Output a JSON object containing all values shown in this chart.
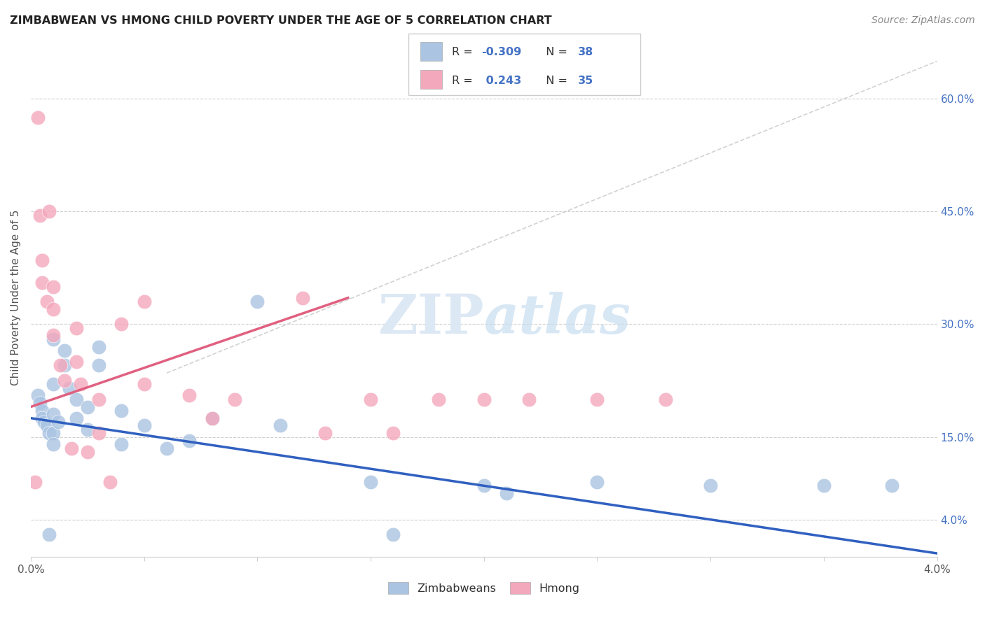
{
  "title": "ZIMBABWEAN VS HMONG CHILD POVERTY UNDER THE AGE OF 5 CORRELATION CHART",
  "source": "Source: ZipAtlas.com",
  "ylabel": "Child Poverty Under the Age of 5",
  "xlim": [
    0.0,
    0.04
  ],
  "ylim": [
    -0.01,
    0.68
  ],
  "right_yticks": [
    0.04,
    0.15,
    0.3,
    0.45,
    0.6
  ],
  "right_yticklabels": [
    "4.0%",
    "15.0%",
    "30.0%",
    "45.0%",
    "60.0%"
  ],
  "grid_yticks": [
    0.04,
    0.15,
    0.3,
    0.45,
    0.6
  ],
  "zim_color": "#aac4e2",
  "hmong_color": "#f4a8bc",
  "zim_line_color": "#3060c0",
  "hmong_line_color": "#e06080",
  "dashed_line_color": "#cccccc",
  "background_color": "#ffffff",
  "zim_line_x0": 0.0,
  "zim_line_y0": 0.175,
  "zim_line_x1": 0.04,
  "zim_line_y1": -0.005,
  "hmong_line_x0": 0.0,
  "hmong_line_y0": 0.19,
  "hmong_line_x1": 0.014,
  "hmong_line_y1": 0.335,
  "dash_line_x0": 0.006,
  "dash_line_y0": 0.235,
  "dash_line_x1": 0.04,
  "dash_line_y1": 0.65,
  "zim_x": [
    0.0003,
    0.0004,
    0.0005,
    0.0005,
    0.0006,
    0.0007,
    0.0008,
    0.0008,
    0.001,
    0.001,
    0.001,
    0.001,
    0.001,
    0.0012,
    0.0015,
    0.0015,
    0.0017,
    0.002,
    0.002,
    0.0025,
    0.0025,
    0.003,
    0.003,
    0.004,
    0.004,
    0.005,
    0.006,
    0.007,
    0.008,
    0.01,
    0.011,
    0.015,
    0.016,
    0.02,
    0.021,
    0.025,
    0.03,
    0.035,
    0.038
  ],
  "zim_y": [
    0.205,
    0.195,
    0.185,
    0.175,
    0.17,
    0.165,
    0.155,
    0.02,
    0.28,
    0.22,
    0.18,
    0.155,
    0.14,
    0.17,
    0.265,
    0.245,
    0.215,
    0.2,
    0.175,
    0.19,
    0.16,
    0.27,
    0.245,
    0.185,
    0.14,
    0.165,
    0.135,
    0.145,
    0.175,
    0.33,
    0.165,
    0.09,
    0.02,
    0.085,
    0.075,
    0.09,
    0.085,
    0.085,
    0.085
  ],
  "hmong_x": [
    0.0002,
    0.0003,
    0.0004,
    0.0005,
    0.0005,
    0.0007,
    0.0008,
    0.001,
    0.001,
    0.001,
    0.0013,
    0.0015,
    0.0018,
    0.002,
    0.002,
    0.0022,
    0.0025,
    0.003,
    0.003,
    0.0035,
    0.004,
    0.005,
    0.005,
    0.007,
    0.008,
    0.009,
    0.012,
    0.013,
    0.015,
    0.016,
    0.018,
    0.02,
    0.022,
    0.025,
    0.028
  ],
  "hmong_y": [
    0.09,
    0.575,
    0.445,
    0.385,
    0.355,
    0.33,
    0.45,
    0.35,
    0.32,
    0.285,
    0.245,
    0.225,
    0.135,
    0.295,
    0.25,
    0.22,
    0.13,
    0.2,
    0.155,
    0.09,
    0.3,
    0.33,
    0.22,
    0.205,
    0.175,
    0.2,
    0.335,
    0.155,
    0.2,
    0.155,
    0.2,
    0.2,
    0.2,
    0.2,
    0.2
  ]
}
